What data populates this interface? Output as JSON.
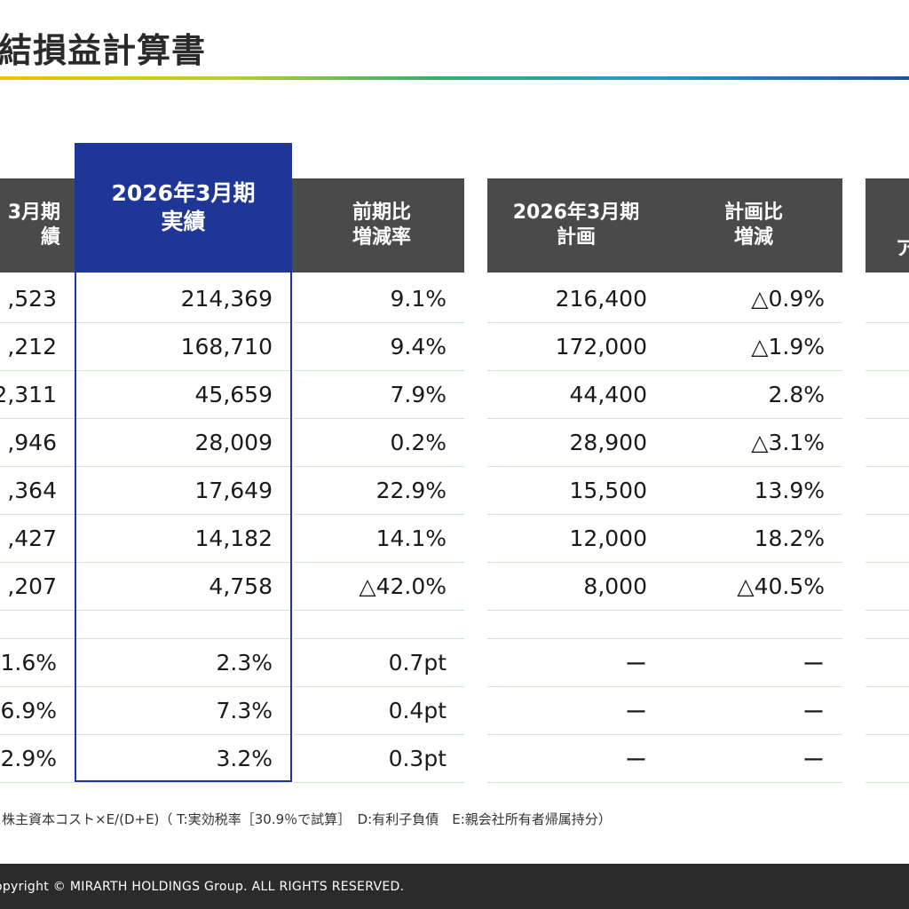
{
  "title": "結損益計算書",
  "headers": {
    "prev_line1": "3月期",
    "prev_line2": "績",
    "actual_line1": "2026年3月期",
    "actual_line2": "実績",
    "yoy_line1": "前期比",
    "yoy_line2": "増減率",
    "plan_line1": "2026年3月期",
    "plan_line2": "計画",
    "vsplan_line1": "計画比",
    "vsplan_line2": "増減",
    "next_line2": "ア"
  },
  "rows": [
    {
      "prev": ",523",
      "actual": "214,369",
      "yoy": "9.1%",
      "plan": "216,400",
      "vsplan": "△0.9%"
    },
    {
      "prev": ",212",
      "actual": "168,710",
      "yoy": "9.4%",
      "plan": "172,000",
      "vsplan": "△1.9%"
    },
    {
      "prev": "2,311",
      "actual": "45,659",
      "yoy": "7.9%",
      "plan": "44,400",
      "vsplan": "2.8%"
    },
    {
      "prev": ",946",
      "actual": "28,009",
      "yoy": "0.2%",
      "plan": "28,900",
      "vsplan": "△3.1%"
    },
    {
      "prev": ",364",
      "actual": "17,649",
      "yoy": "22.9%",
      "plan": "15,500",
      "vsplan": "13.9%"
    },
    {
      "prev": ",427",
      "actual": "14,182",
      "yoy": "14.1%",
      "plan": "12,000",
      "vsplan": "18.2%"
    },
    {
      "prev": ",207",
      "actual": "4,758",
      "yoy": "△42.0%",
      "plan": "8,000",
      "vsplan": "△40.5%"
    },
    {
      "prev": "",
      "actual": "",
      "yoy": "",
      "plan": "",
      "vsplan": ""
    },
    {
      "prev": "1.6%",
      "actual": "2.3%",
      "yoy": "0.7pt",
      "plan": "ー",
      "vsplan": "ー"
    },
    {
      "prev": "6.9%",
      "actual": "7.3%",
      "yoy": "0.4pt",
      "plan": "ー",
      "vsplan": "ー"
    },
    {
      "prev": "2.9%",
      "actual": "3.2%",
      "yoy": "0.3pt",
      "plan": "ー",
      "vsplan": "ー"
    }
  ],
  "footnote": "株主資本コスト×E/(D+E)（ T:実効税率［30.9％で試算］　D:有利子負債　E:親会社所有者帰属持分）",
  "footer": "opyright © MIRARTH HOLDINGS Group. ALL RIGHTS RESERVED.",
  "colors": {
    "actual_header": "#1e3797",
    "header": "#4a4a4a",
    "row_rule": "#cfe6cf",
    "footer_bg": "#2b2b2b"
  }
}
